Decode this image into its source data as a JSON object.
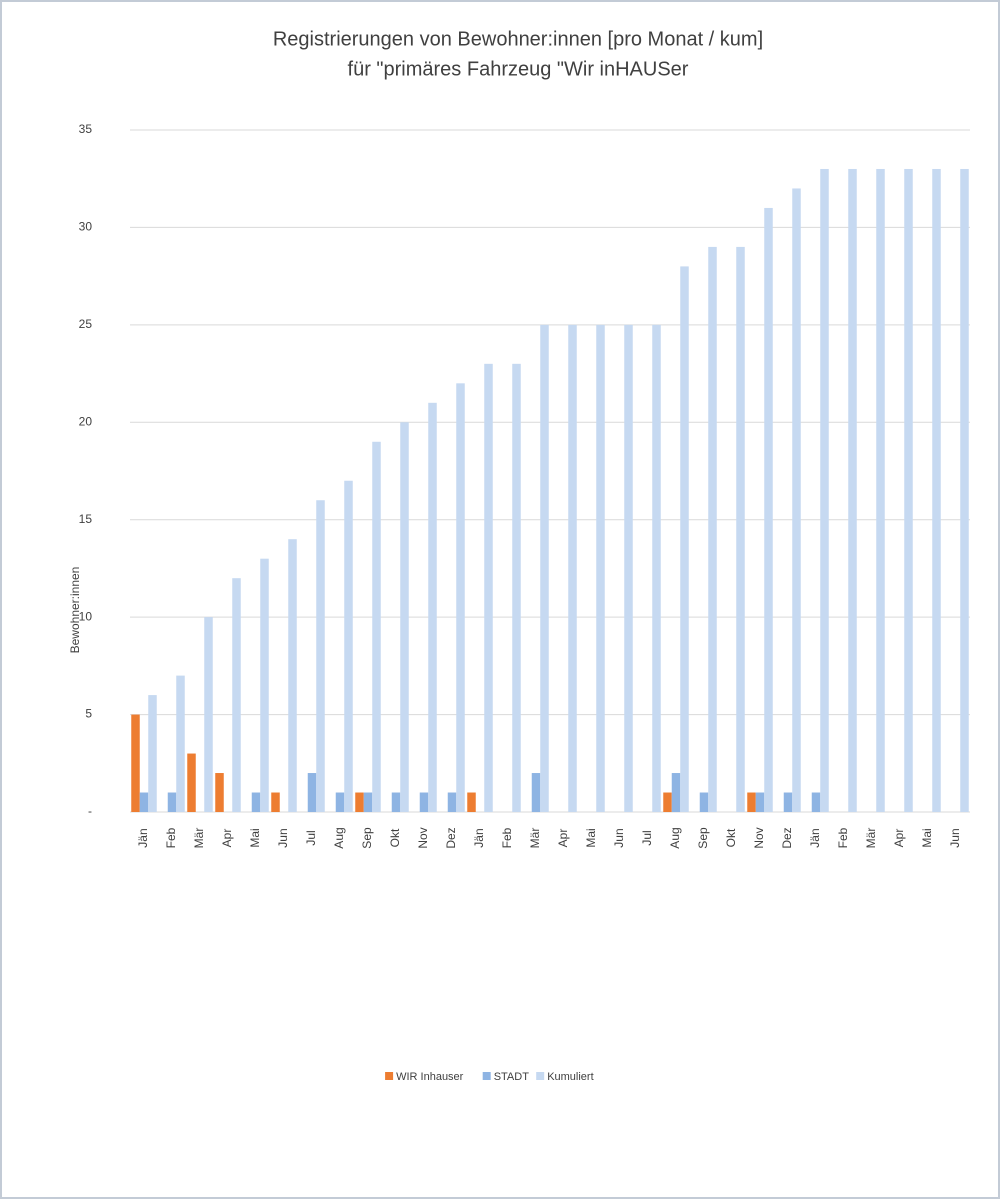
{
  "chart_data": {
    "type": "bar",
    "title": [
      "Registrierungen von Bewohner:innen [pro Monat / kum]",
      "für \"primäres Fahrzeug \"Wir inHAUSer"
    ],
    "y_label": "Bewohner:innen",
    "categories": [
      "Jän",
      "Feb",
      "Mär",
      "Apr",
      "Mai",
      "Jun",
      "Jul",
      "Aug",
      "Sep",
      "Okt",
      "Nov",
      "Dez",
      "Jän",
      "Feb",
      "Mär",
      "Apr",
      "Mai",
      "Jun",
      "Jul",
      "Aug",
      "Sep",
      "Okt",
      "Nov",
      "Dez",
      "Jän",
      "Feb",
      "Mär",
      "Apr",
      "Mai",
      "Jun"
    ],
    "series": [
      {
        "name": "WIR Inhauser",
        "color": "#ed7d31",
        "values": [
          5,
          0,
          3,
          2,
          0,
          1,
          0,
          0,
          1,
          0,
          0,
          0,
          1,
          0,
          0,
          0,
          0,
          0,
          0,
          1,
          0,
          0,
          1,
          0,
          0,
          0,
          0,
          0,
          0,
          0
        ]
      },
      {
        "name": "STADT",
        "color": "#8eb4e3",
        "values": [
          1,
          1,
          0,
          0,
          1,
          0,
          2,
          1,
          1,
          1,
          1,
          1,
          0,
          0,
          2,
          0,
          0,
          0,
          0,
          2,
          1,
          0,
          1,
          1,
          1,
          0,
          0,
          0,
          0,
          0
        ]
      },
      {
        "name": "Kumuliert",
        "color": "#c6d9f1",
        "values": [
          6,
          7,
          10,
          12,
          13,
          14,
          16,
          17,
          19,
          20,
          21,
          22,
          23,
          23,
          25,
          25,
          25,
          25,
          25,
          28,
          29,
          29,
          31,
          32,
          33,
          33,
          33,
          33,
          33,
          33
        ]
      }
    ],
    "ylim": [
      0,
      35
    ],
    "yticks": [
      {
        "value": 0,
        "label": "-"
      },
      5,
      10,
      15,
      20,
      25,
      30,
      35
    ],
    "grid": true,
    "legend": "bottom"
  }
}
